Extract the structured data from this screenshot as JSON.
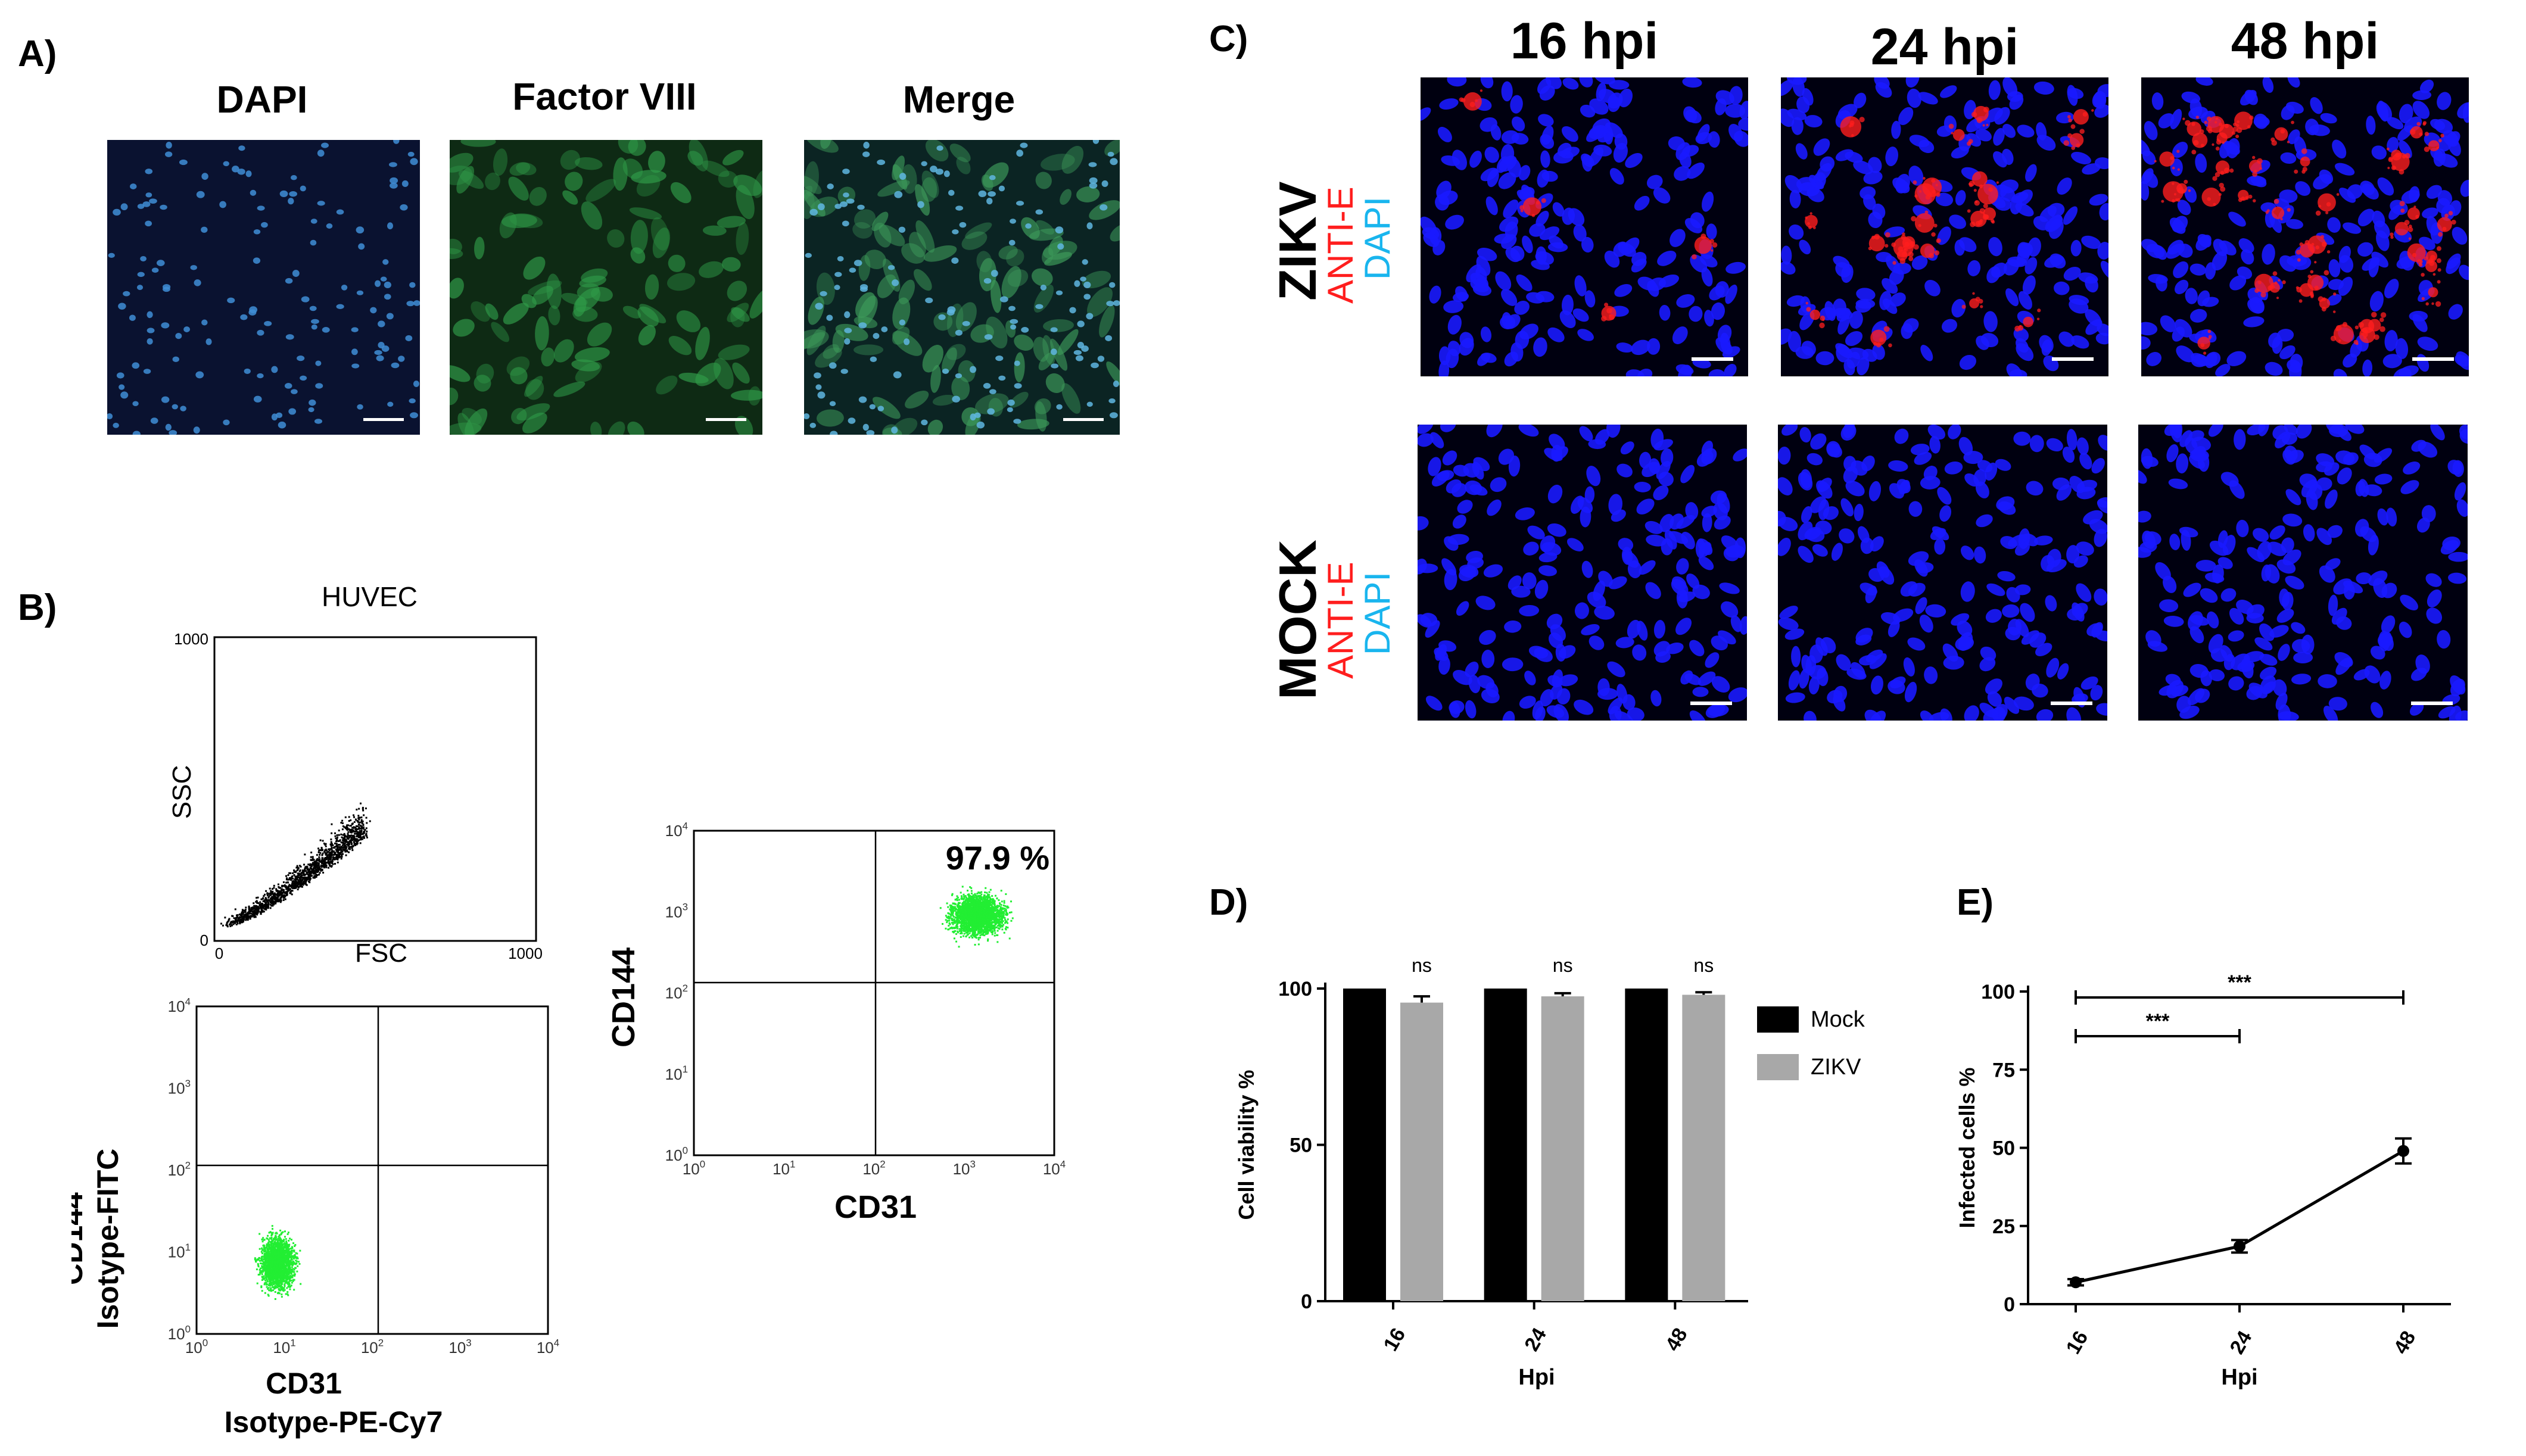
{
  "panels": {
    "a": "A)",
    "b": "B)",
    "c": "C)",
    "d": "D)",
    "e": "E)"
  },
  "panel_a": {
    "titles": [
      "DAPI",
      "Factor VIII",
      "Merge"
    ]
  },
  "panel_b": {
    "huvec_title": "HUVEC",
    "scatter": {
      "ylabel": "SSC",
      "xlabel": "FSC",
      "ticks": [
        "0",
        "1000"
      ]
    },
    "isotype": {
      "ylabel_1": "CD144",
      "ylabel_2": "Isotype-FITC",
      "xlabel_1": "CD31",
      "xlabel_2": "Isotype-PE-Cy7"
    },
    "stained": {
      "ylabel": "CD144",
      "xlabel": "CD31",
      "percent": "97.9 %"
    },
    "log_ticks": [
      "10",
      "10",
      "10",
      "10",
      "10"
    ],
    "log_exps": [
      "0",
      "1",
      "2",
      "3",
      "4"
    ]
  },
  "panel_c": {
    "times": [
      "16 hpi",
      "24 hpi",
      "48 hpi"
    ],
    "row_zikv": {
      "name": "ZIKV",
      "stain1": "ANTI-E",
      "stain2": "DAPI"
    },
    "row_mock": {
      "name": "MOCK",
      "stain1": "ANTI-E",
      "stain2": "DAPI"
    }
  },
  "colors": {
    "dapi_blue": "#1a1aff",
    "anti_e_red": "#ff1e1e",
    "dapi_label": "#19b5ee",
    "flow_green": "#22ee33",
    "mock_bar": "#000000",
    "zikv_bar": "#a8a8a8"
  },
  "chart_data": [
    {
      "panel": "D",
      "type": "bar",
      "categories": [
        "16",
        "24",
        "48"
      ],
      "series": [
        {
          "name": "Mock",
          "values": [
            100,
            100,
            100
          ]
        },
        {
          "name": "ZIKV",
          "values": [
            95.5,
            97.5,
            98
          ],
          "errors": [
            2,
            1,
            0.8
          ]
        }
      ],
      "annotations": [
        "ns",
        "ns",
        "ns"
      ],
      "xlabel": "Hpi",
      "ylabel": "Cell viability %",
      "ylim": [
        0,
        100
      ],
      "yticks": [
        "0",
        "50",
        "100"
      ],
      "legend": "right"
    },
    {
      "panel": "E",
      "type": "line",
      "x": [
        "16",
        "24",
        "48"
      ],
      "series": [
        {
          "values": [
            7,
            18.5,
            49
          ],
          "errors": [
            1,
            2,
            4
          ]
        }
      ],
      "annotations": [
        {
          "from": "16",
          "to": "24",
          "label": "***"
        },
        {
          "from": "16",
          "to": "48",
          "label": "***"
        }
      ],
      "xlabel": "Hpi",
      "ylabel": "Infected cells %",
      "ylim": [
        0,
        100
      ],
      "yticks": [
        "0",
        "25",
        "50",
        "75",
        "100"
      ]
    }
  ]
}
